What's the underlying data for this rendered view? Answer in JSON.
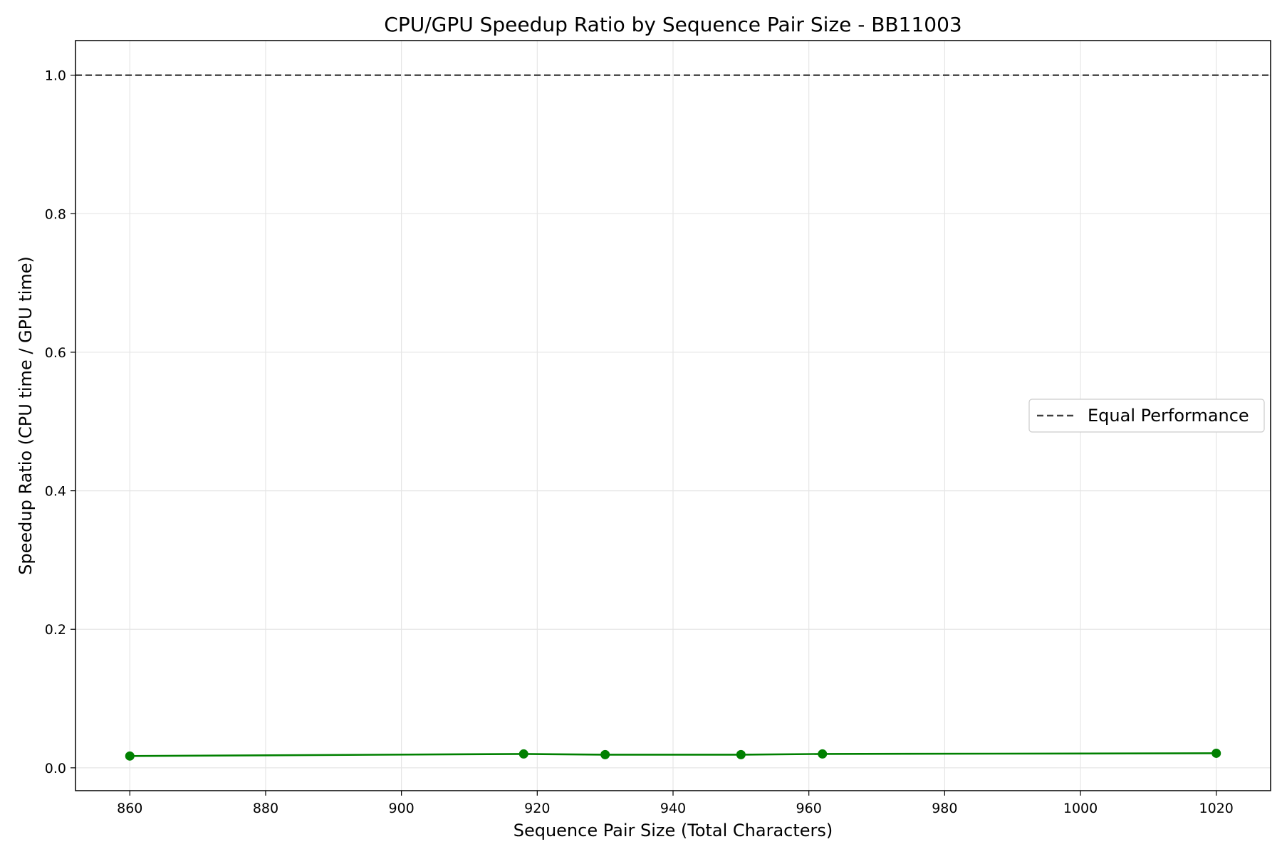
{
  "chart_data": {
    "type": "line",
    "title": "CPU/GPU Speedup Ratio by Sequence Pair Size - BB11003",
    "xlabel": "Sequence Pair Size (Total Characters)",
    "ylabel": "Speedup Ratio (CPU time / GPU time)",
    "xlim": [
      852,
      1028
    ],
    "ylim": [
      -0.033,
      1.05
    ],
    "x_ticks": [
      860,
      880,
      900,
      920,
      940,
      960,
      980,
      1000,
      1020
    ],
    "y_ticks": [
      0.0,
      0.2,
      0.4,
      0.6,
      0.8,
      1.0
    ],
    "x_tick_labels": [
      "860",
      "880",
      "900",
      "920",
      "940",
      "960",
      "980",
      "1000",
      "1020"
    ],
    "y_tick_labels": [
      "0.0",
      "0.2",
      "0.4",
      "0.6",
      "0.8",
      "1.0"
    ],
    "grid": true,
    "legend_position": "center-right",
    "series": [
      {
        "x": [
          860,
          918,
          930,
          950,
          962,
          1020
        ],
        "y": [
          0.017,
          0.02,
          0.019,
          0.019,
          0.02,
          0.021
        ],
        "color": "#008000",
        "marker": "circle",
        "line_style": "solid"
      }
    ],
    "reference_lines": [
      {
        "name": "Equal Performance",
        "orientation": "horizontal",
        "y": 1.0,
        "color": "#404040",
        "line_style": "dashed"
      }
    ]
  }
}
